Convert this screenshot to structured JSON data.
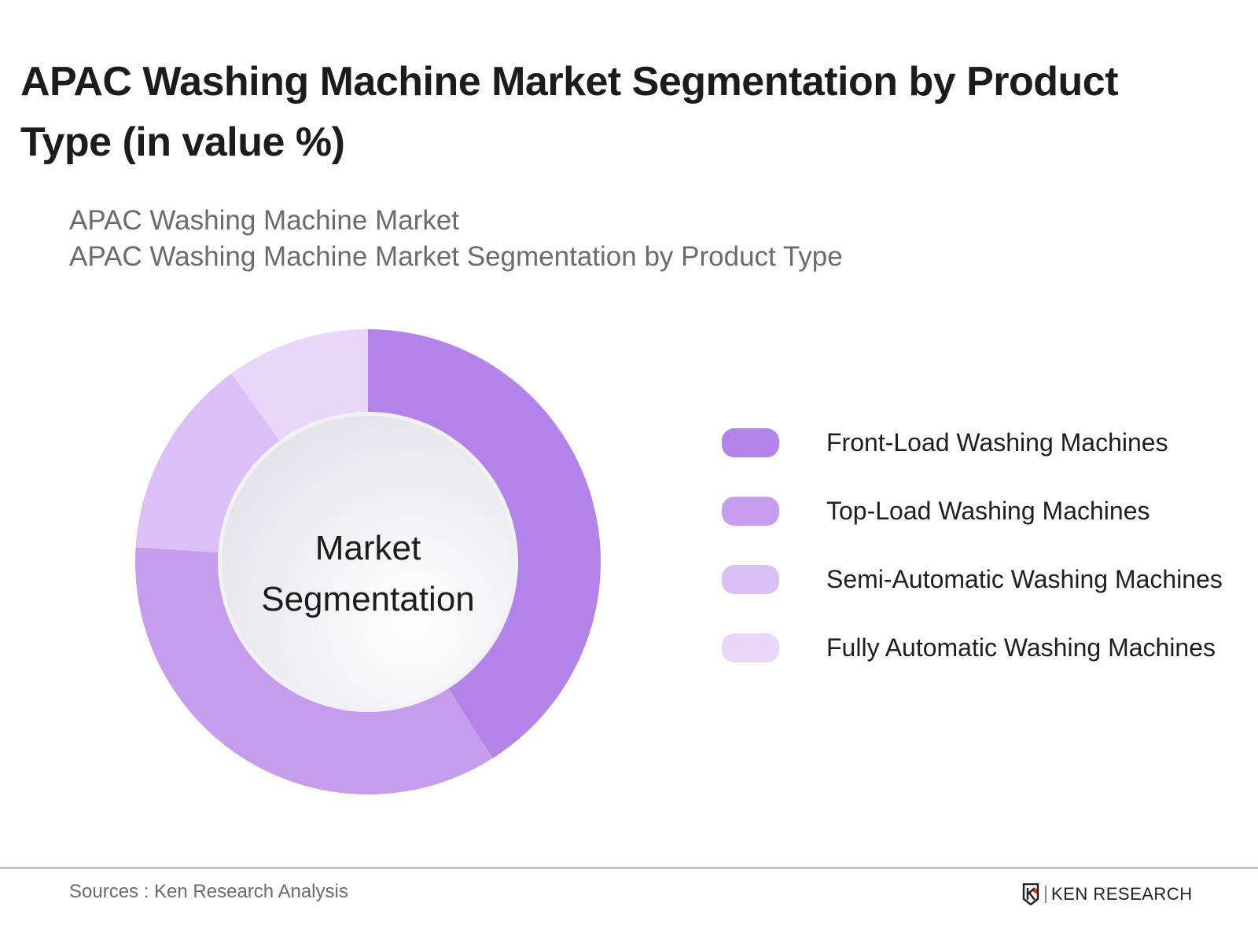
{
  "header": {
    "title": "APAC Washing Machine Market Segmentation by Product Type (in value %)",
    "subtitle_line1": "APAC Washing Machine Market",
    "subtitle_line2": "APAC Washing Machine Market Segmentation by Product Type"
  },
  "donut": {
    "center_line1": "Market",
    "center_line2": "Segmentation"
  },
  "legend": [
    {
      "label": "Front-Load Washing Machines",
      "color": "#B383E9"
    },
    {
      "label": "Top-Load Washing Machines",
      "color": "#C69DEC"
    },
    {
      "label": "Semi-Automatic Washing Machines",
      "color": "#DBBFF5"
    },
    {
      "label": "Fully Automatic Washing Machines",
      "color": "#E8D7F9"
    }
  ],
  "footer": {
    "sources": "Sources : Ken Research Analysis",
    "logo_text": "KEN RESEARCH"
  },
  "chart_data": {
    "type": "pie",
    "variant": "donut",
    "title": "APAC Washing Machine Market Segmentation by Product Type (in value %)",
    "subtitle": "APAC Washing Machine Market Segmentation by Product Type",
    "categories": [
      "Front-Load Washing Machines",
      "Top-Load Washing Machines",
      "Semi-Automatic Washing Machines",
      "Fully Automatic Washing Machines"
    ],
    "values": [
      41,
      35,
      14,
      10
    ],
    "colors": [
      "#B383E9",
      "#C69DEC",
      "#DBBFF5",
      "#E8D7F9"
    ],
    "center_label": "Market Segmentation",
    "legend_position": "right",
    "start_angle": "12 o'clock, clockwise"
  }
}
